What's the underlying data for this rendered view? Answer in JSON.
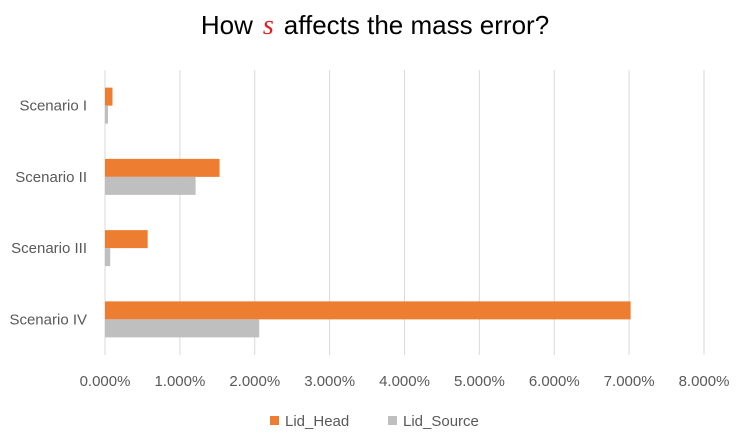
{
  "chart_data": {
    "type": "bar",
    "orientation": "horizontal",
    "title": {
      "before": "How",
      "symbol": "s",
      "after": "affects the mass error?"
    },
    "categories": [
      "Scenario I",
      "Scenario II",
      "Scenario III",
      "Scenario IV"
    ],
    "series": [
      {
        "name": "Lid_Head",
        "color": "#ED7D31",
        "values": [
          0.1,
          1.53,
          0.57,
          7.02
        ]
      },
      {
        "name": "Lid_Source",
        "color": "#BFBFBF",
        "values": [
          0.04,
          1.21,
          0.07,
          2.06
        ]
      }
    ],
    "xlim": [
      0,
      8
    ],
    "x_ticks": [
      0,
      1,
      2,
      3,
      4,
      5,
      6,
      7,
      8
    ],
    "x_tick_labels": [
      "0.000%",
      "1.000%",
      "2.000%",
      "3.000%",
      "4.000%",
      "5.000%",
      "6.000%",
      "7.000%",
      "8.000%"
    ],
    "xlabel": "",
    "ylabel": "",
    "grid": "vertical",
    "gridline_color": "#D9D9D9",
    "legend_position": "bottom"
  }
}
